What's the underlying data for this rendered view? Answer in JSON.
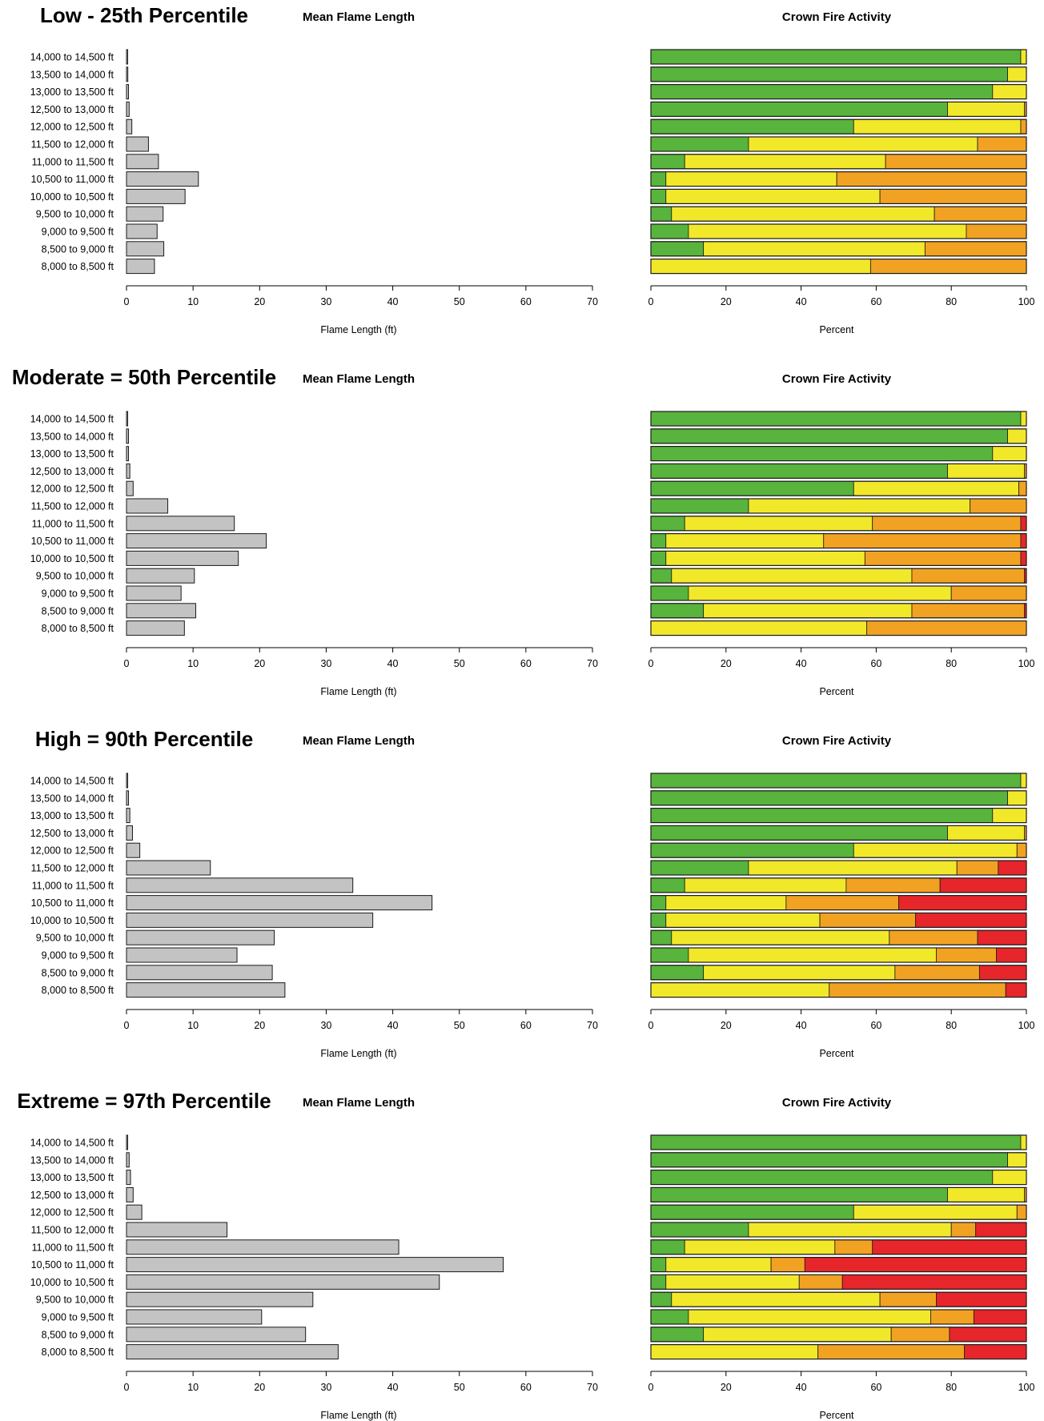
{
  "chart_data": [
    {
      "scenario": "Low - 25th Percentile",
      "flame": {
        "type": "bar",
        "title": "Mean Flame Length",
        "xlabel": "Flame Length (ft)",
        "xlim": [
          0,
          70
        ],
        "ticks": [
          0,
          10,
          20,
          30,
          40,
          50,
          60,
          70
        ],
        "categories": [
          "14,000 to 14,500 ft",
          "13,500 to 14,000 ft",
          "13,000 to 13,500 ft",
          "12,500 to 13,000 ft",
          "12,000 to 12,500 ft",
          "11,500 to 12,000 ft",
          "11,000 to 11,500 ft",
          "10,500 to 11,000 ft",
          "10,000 to 10,500 ft",
          "9,500 to 10,000 ft",
          "9,000 to 9,500 ft",
          "8,500 to 9,000 ft",
          "8,000 to 8,500 ft"
        ],
        "values": [
          0.1,
          0.2,
          0.3,
          0.4,
          0.8,
          3.3,
          4.8,
          10.8,
          8.8,
          5.5,
          4.6,
          5.6,
          4.2
        ]
      },
      "crown": {
        "type": "stacked-bar",
        "title": "Crown Fire Activity",
        "xlabel": "Percent",
        "xlim": [
          0,
          100
        ],
        "ticks": [
          0,
          20,
          40,
          60,
          80,
          100
        ],
        "colors": [
          "#58b43c",
          "#f2e82a",
          "#f2a222",
          "#e6262a"
        ],
        "rows": [
          [
            98.5,
            1.5,
            0,
            0
          ],
          [
            95,
            5,
            0,
            0
          ],
          [
            91,
            9,
            0,
            0
          ],
          [
            79,
            20.5,
            0.5,
            0
          ],
          [
            54,
            44.5,
            1.5,
            0
          ],
          [
            26,
            61,
            13,
            0
          ],
          [
            9,
            53.5,
            37.5,
            0
          ],
          [
            4,
            45.5,
            50.5,
            0
          ],
          [
            4,
            57,
            39,
            0
          ],
          [
            5.5,
            70,
            24.5,
            0
          ],
          [
            10,
            74,
            16,
            0
          ],
          [
            14,
            59,
            27,
            0
          ],
          [
            0,
            58.5,
            41.5,
            0
          ]
        ]
      }
    },
    {
      "scenario": "Moderate = 50th Percentile",
      "flame": {
        "type": "bar",
        "title": "Mean Flame Length",
        "xlabel": "Flame Length (ft)",
        "xlim": [
          0,
          70
        ],
        "ticks": [
          0,
          10,
          20,
          30,
          40,
          50,
          60,
          70
        ],
        "categories": [
          "14,000 to 14,500 ft",
          "13,500 to 14,000 ft",
          "13,000 to 13,500 ft",
          "12,500 to 13,000 ft",
          "12,000 to 12,500 ft",
          "11,500 to 12,000 ft",
          "11,000 to 11,500 ft",
          "10,500 to 11,000 ft",
          "10,000 to 10,500 ft",
          "9,500 to 10,000 ft",
          "9,000 to 9,500 ft",
          "8,500 to 9,000 ft",
          "8,000 to 8,500 ft"
        ],
        "values": [
          0.1,
          0.3,
          0.3,
          0.5,
          1.0,
          6.2,
          16.2,
          21.0,
          16.8,
          10.2,
          8.2,
          10.4,
          8.7
        ]
      },
      "crown": {
        "type": "stacked-bar",
        "title": "Crown Fire Activity",
        "xlabel": "Percent",
        "xlim": [
          0,
          100
        ],
        "ticks": [
          0,
          20,
          40,
          60,
          80,
          100
        ],
        "colors": [
          "#58b43c",
          "#f2e82a",
          "#f2a222",
          "#e6262a"
        ],
        "rows": [
          [
            98.5,
            1.5,
            0,
            0
          ],
          [
            95,
            5,
            0,
            0
          ],
          [
            91,
            9,
            0,
            0
          ],
          [
            79,
            20.5,
            0.5,
            0
          ],
          [
            54,
            44,
            2,
            0
          ],
          [
            26,
            59,
            15,
            0
          ],
          [
            9,
            50,
            39.5,
            1.5
          ],
          [
            4,
            42,
            52.5,
            1.5
          ],
          [
            4,
            53,
            41.5,
            1.5
          ],
          [
            5.5,
            64,
            30,
            0.5
          ],
          [
            10,
            70,
            20,
            0
          ],
          [
            14,
            55.5,
            30,
            0.5
          ],
          [
            0,
            57.5,
            42.5,
            0
          ]
        ]
      }
    },
    {
      "scenario": "High = 90th Percentile",
      "flame": {
        "type": "bar",
        "title": "Mean Flame Length",
        "xlabel": "Flame Length (ft)",
        "xlim": [
          0,
          70
        ],
        "ticks": [
          0,
          10,
          20,
          30,
          40,
          50,
          60,
          70
        ],
        "categories": [
          "14,000 to 14,500 ft",
          "13,500 to 14,000 ft",
          "13,000 to 13,500 ft",
          "12,500 to 13,000 ft",
          "12,000 to 12,500 ft",
          "11,500 to 12,000 ft",
          "11,000 to 11,500 ft",
          "10,500 to 11,000 ft",
          "10,000 to 10,500 ft",
          "9,500 to 10,000 ft",
          "9,000 to 9,500 ft",
          "8,500 to 9,000 ft",
          "8,000 to 8,500 ft"
        ],
        "values": [
          0.1,
          0.3,
          0.5,
          0.9,
          2.0,
          12.6,
          34.0,
          45.9,
          37.0,
          22.2,
          16.6,
          21.9,
          23.8
        ]
      },
      "crown": {
        "type": "stacked-bar",
        "title": "Crown Fire Activity",
        "xlabel": "Percent",
        "xlim": [
          0,
          100
        ],
        "ticks": [
          0,
          20,
          40,
          60,
          80,
          100
        ],
        "colors": [
          "#58b43c",
          "#f2e82a",
          "#f2a222",
          "#e6262a"
        ],
        "rows": [
          [
            98.5,
            1.5,
            0,
            0
          ],
          [
            95,
            5,
            0,
            0
          ],
          [
            91,
            9,
            0,
            0
          ],
          [
            79,
            20.5,
            0.5,
            0
          ],
          [
            54,
            43.5,
            2.5,
            0
          ],
          [
            26,
            55.5,
            11,
            7.5
          ],
          [
            9,
            43,
            25,
            23
          ],
          [
            4,
            32,
            30,
            34
          ],
          [
            4,
            41,
            25.5,
            29.5
          ],
          [
            5.5,
            58,
            23.5,
            13
          ],
          [
            10,
            66,
            16,
            8
          ],
          [
            14,
            51,
            22.5,
            12.5
          ],
          [
            0,
            47.5,
            47,
            5.5
          ]
        ]
      }
    },
    {
      "scenario": "Extreme = 97th Percentile",
      "flame": {
        "type": "bar",
        "title": "Mean Flame Length",
        "xlabel": "Flame Length (ft)",
        "xlim": [
          0,
          70
        ],
        "ticks": [
          0,
          10,
          20,
          30,
          40,
          50,
          60,
          70
        ],
        "categories": [
          "14,000 to 14,500 ft",
          "13,500 to 14,000 ft",
          "13,000 to 13,500 ft",
          "12,500 to 13,000 ft",
          "12,000 to 12,500 ft",
          "11,500 to 12,000 ft",
          "11,000 to 11,500 ft",
          "10,500 to 11,000 ft",
          "10,000 to 10,500 ft",
          "9,500 to 10,000 ft",
          "9,000 to 9,500 ft",
          "8,500 to 9,000 ft",
          "8,000 to 8,500 ft"
        ],
        "values": [
          0.1,
          0.4,
          0.6,
          1.0,
          2.3,
          15.1,
          40.9,
          56.6,
          47.0,
          28.0,
          20.3,
          26.9,
          31.8
        ]
      },
      "crown": {
        "type": "stacked-bar",
        "title": "Crown Fire Activity",
        "xlabel": "Percent",
        "xlim": [
          0,
          100
        ],
        "ticks": [
          0,
          20,
          40,
          60,
          80,
          100
        ],
        "colors": [
          "#58b43c",
          "#f2e82a",
          "#f2a222",
          "#e6262a"
        ],
        "rows": [
          [
            98.5,
            1.5,
            0,
            0
          ],
          [
            95,
            5,
            0,
            0
          ],
          [
            91,
            9,
            0,
            0
          ],
          [
            79,
            20.5,
            0.5,
            0
          ],
          [
            54,
            43.5,
            2.5,
            0
          ],
          [
            26,
            54,
            6.5,
            13.5
          ],
          [
            9,
            40,
            10,
            41
          ],
          [
            4,
            28,
            9,
            59
          ],
          [
            4,
            35.5,
            11.5,
            49
          ],
          [
            5.5,
            55.5,
            15,
            24
          ],
          [
            10,
            64.5,
            11.5,
            14
          ],
          [
            14,
            50,
            15.5,
            20.5
          ],
          [
            0,
            44.5,
            39,
            16.5
          ]
        ]
      }
    }
  ]
}
